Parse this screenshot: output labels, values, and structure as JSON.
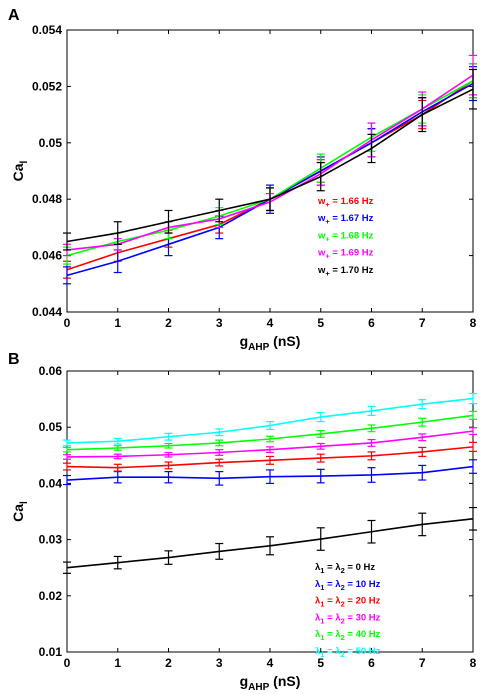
{
  "chart_data": [
    {
      "panel_label": "A",
      "type": "line",
      "xlabel": {
        "main": "g",
        "sub": "AHP",
        "rest": " (nS)"
      },
      "ylabel": {
        "main": "Ca",
        "sub": "l"
      },
      "xlim": [
        0,
        8
      ],
      "ylim": [
        0.044,
        0.054
      ],
      "xticks": [
        "0",
        "1",
        "2",
        "3",
        "4",
        "5",
        "6",
        "7",
        "8"
      ],
      "yticks": [
        "0.044",
        "0.046",
        "0.048",
        "0.05",
        "0.052",
        "0.054"
      ],
      "x": [
        0,
        1,
        2,
        3,
        4,
        5,
        6,
        7,
        8
      ],
      "legend_position": "lower-right",
      "series": [
        {
          "name": "w+ = 1.66 Hz",
          "label_parts": [
            "w",
            "+",
            " = 1.66 Hz"
          ],
          "color": "#ff0000",
          "values": [
            0.0455,
            0.0461,
            0.0466,
            0.0471,
            0.048,
            0.049,
            0.05,
            0.051,
            0.0522
          ],
          "errors": [
            0.0003,
            0.0003,
            0.0003,
            0.0003,
            0.0004,
            0.0004,
            0.0005,
            0.0005,
            0.0006
          ]
        },
        {
          "name": "w+ = 1.67 Hz",
          "label_parts": [
            "w",
            "+",
            " = 1.67 Hz"
          ],
          "color": "#0000ff",
          "values": [
            0.0453,
            0.0458,
            0.0464,
            0.047,
            0.048,
            0.049,
            0.05,
            0.0511,
            0.0521
          ],
          "errors": [
            0.0003,
            0.0004,
            0.0004,
            0.0004,
            0.0005,
            0.0005,
            0.0005,
            0.0005,
            0.0006
          ]
        },
        {
          "name": "w+ = 1.68 Hz",
          "label_parts": [
            "w",
            "+",
            " = 1.68 Hz"
          ],
          "color": "#00ff00",
          "values": [
            0.046,
            0.0465,
            0.0469,
            0.0474,
            0.048,
            0.0491,
            0.0502,
            0.0512,
            0.0522
          ],
          "errors": [
            0.0003,
            0.0003,
            0.0003,
            0.0003,
            0.0004,
            0.0005,
            0.0005,
            0.0005,
            0.0006
          ]
        },
        {
          "name": "w+ = 1.69 Hz",
          "label_parts": [
            "w",
            "+",
            " = 1.69 Hz"
          ],
          "color": "#ff00ff",
          "values": [
            0.0462,
            0.0464,
            0.047,
            0.0473,
            0.0479,
            0.0489,
            0.0501,
            0.0512,
            0.0524
          ],
          "errors": [
            0.0002,
            0.0002,
            0.0002,
            0.0003,
            0.0003,
            0.0004,
            0.0006,
            0.0006,
            0.0007
          ]
        },
        {
          "name": "w+ = 1.70 Hz",
          "label_parts": [
            "w",
            "+",
            " = 1.70 Hz"
          ],
          "color": "#000000",
          "values": [
            0.0465,
            0.0468,
            0.0472,
            0.0476,
            0.048,
            0.0488,
            0.0498,
            0.051,
            0.0519
          ],
          "errors": [
            0.0003,
            0.0004,
            0.0004,
            0.0004,
            0.0004,
            0.0005,
            0.0005,
            0.0006,
            0.0007
          ]
        }
      ]
    },
    {
      "panel_label": "B",
      "type": "line",
      "xlabel": {
        "main": "g",
        "sub": "AHP",
        "rest": " (nS)"
      },
      "ylabel": {
        "main": "Ca",
        "sub": "l"
      },
      "xlim": [
        0,
        8
      ],
      "ylim": [
        0.01,
        0.06
      ],
      "xticks": [
        "0",
        "1",
        "2",
        "3",
        "4",
        "5",
        "6",
        "7",
        "8"
      ],
      "yticks": [
        "0.01",
        "0.02",
        "0.03",
        "0.04",
        "0.05",
        "0.06"
      ],
      "x": [
        0,
        1,
        2,
        3,
        4,
        5,
        6,
        7,
        8
      ],
      "legend_position": "lower-right",
      "series": [
        {
          "name": "λ1 = λ2 =  0 Hz",
          "label_parts": [
            "λ",
            "1",
            " = λ",
            "2",
            " =  0 Hz"
          ],
          "color": "#000000",
          "values": [
            0.025,
            0.0259,
            0.0268,
            0.0279,
            0.0289,
            0.0301,
            0.0314,
            0.0327,
            0.0337
          ],
          "errors": [
            0.001,
            0.0011,
            0.0012,
            0.0014,
            0.0016,
            0.002,
            0.002,
            0.002,
            0.002
          ]
        },
        {
          "name": "λ1 = λ2 = 10 Hz",
          "label_parts": [
            "λ",
            "1",
            " = λ",
            "2",
            " = 10 Hz"
          ],
          "color": "#0000ff",
          "values": [
            0.0406,
            0.0411,
            0.0411,
            0.0409,
            0.0412,
            0.0413,
            0.0415,
            0.0419,
            0.043
          ],
          "errors": [
            0.0008,
            0.001,
            0.001,
            0.0012,
            0.0012,
            0.0012,
            0.0013,
            0.0013,
            0.0012
          ]
        },
        {
          "name": "λ1 = λ2 = 20 Hz",
          "label_parts": [
            "λ",
            "1",
            " = λ",
            "2",
            " = 20 Hz"
          ],
          "color": "#ff0000",
          "values": [
            0.043,
            0.0428,
            0.0432,
            0.0437,
            0.0441,
            0.0445,
            0.0449,
            0.0456,
            0.0465
          ],
          "errors": [
            0.0006,
            0.0006,
            0.0006,
            0.0006,
            0.0007,
            0.0007,
            0.0007,
            0.0008,
            0.0008
          ]
        },
        {
          "name": "λ1 = λ2 = 30 Hz",
          "label_parts": [
            "λ",
            "1",
            " = λ",
            "2",
            " = 30 Hz"
          ],
          "color": "#ff00ff",
          "values": [
            0.0447,
            0.0448,
            0.0451,
            0.0455,
            0.046,
            0.0466,
            0.0472,
            0.0482,
            0.0493
          ],
          "errors": [
            0.0004,
            0.0004,
            0.0004,
            0.0005,
            0.0005,
            0.0005,
            0.0006,
            0.0006,
            0.0006
          ]
        },
        {
          "name": "λ1 = λ2 = 40 Hz",
          "label_parts": [
            "λ",
            "1",
            " = λ",
            "2",
            " = 40 Hz"
          ],
          "color": "#00ff00",
          "values": [
            0.046,
            0.0463,
            0.0467,
            0.0472,
            0.0479,
            0.0488,
            0.0498,
            0.0509,
            0.0521
          ],
          "errors": [
            0.0004,
            0.0004,
            0.0004,
            0.0005,
            0.0005,
            0.0006,
            0.0006,
            0.0007,
            0.0007
          ]
        },
        {
          "name": "λ1 = λ2 = 50 Hz",
          "label_parts": [
            "λ",
            "1",
            " = λ",
            "2",
            " = 50 Hz"
          ],
          "color": "#00ffff",
          "values": [
            0.0472,
            0.0475,
            0.0483,
            0.0491,
            0.0503,
            0.0518,
            0.0529,
            0.0541,
            0.0551
          ],
          "errors": [
            0.0005,
            0.0005,
            0.0006,
            0.0006,
            0.0007,
            0.0008,
            0.0008,
            0.0008,
            0.0009
          ]
        }
      ]
    }
  ]
}
